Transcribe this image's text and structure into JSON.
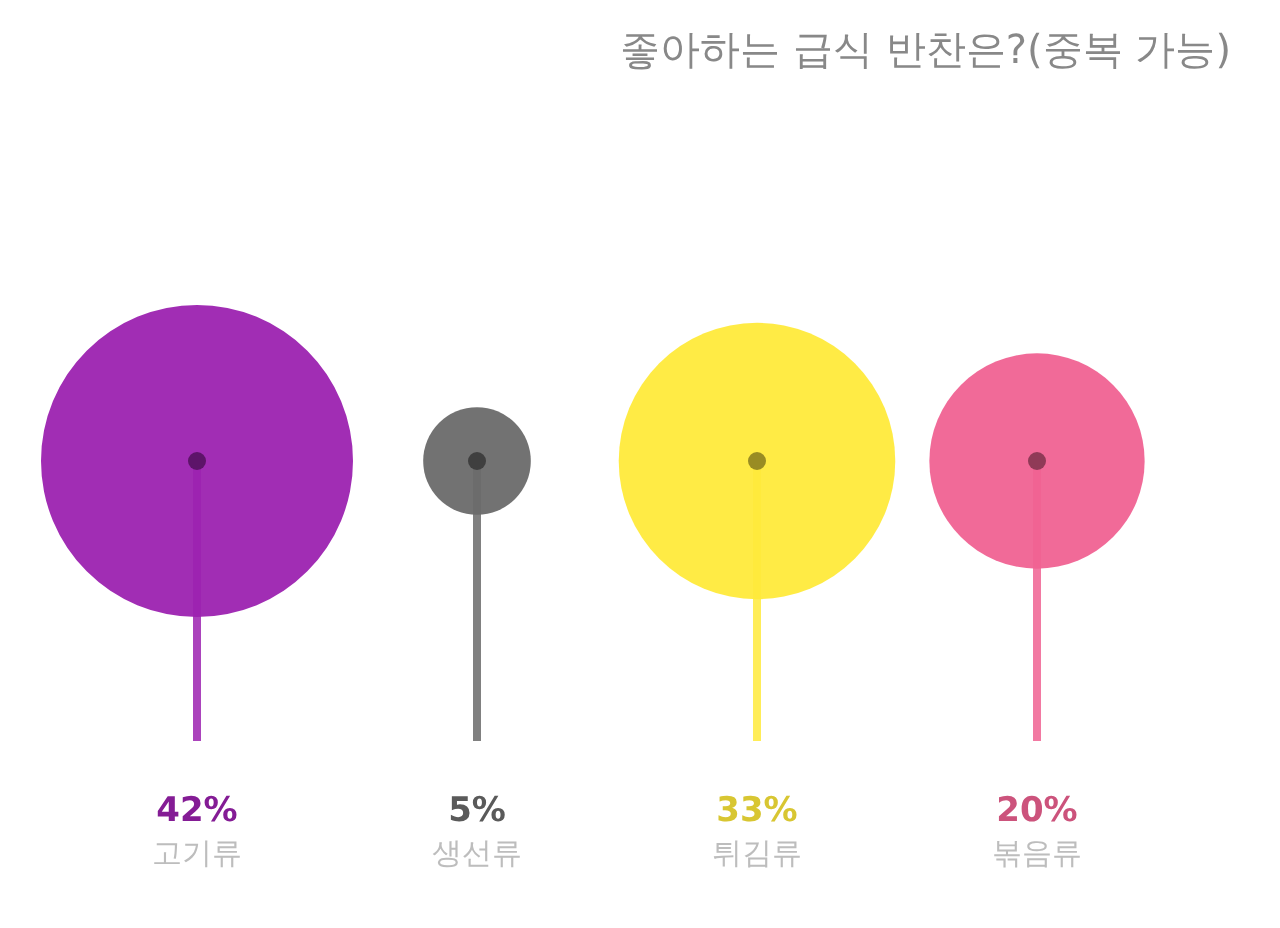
{
  "chart_data": {
    "type": "other",
    "title": "좋아하는 급식 반찬은?(중복 가능)",
    "categories": [
      "고기류",
      "생선류",
      "튀김류",
      "볶음류"
    ],
    "values": [
      42,
      5,
      33,
      20
    ],
    "colors": [
      "#9c22b0",
      "#6a6a6a",
      "#ffea3b",
      "#f06292"
    ],
    "value_labels": [
      "42%",
      "5%",
      "33%",
      "20%"
    ]
  }
}
